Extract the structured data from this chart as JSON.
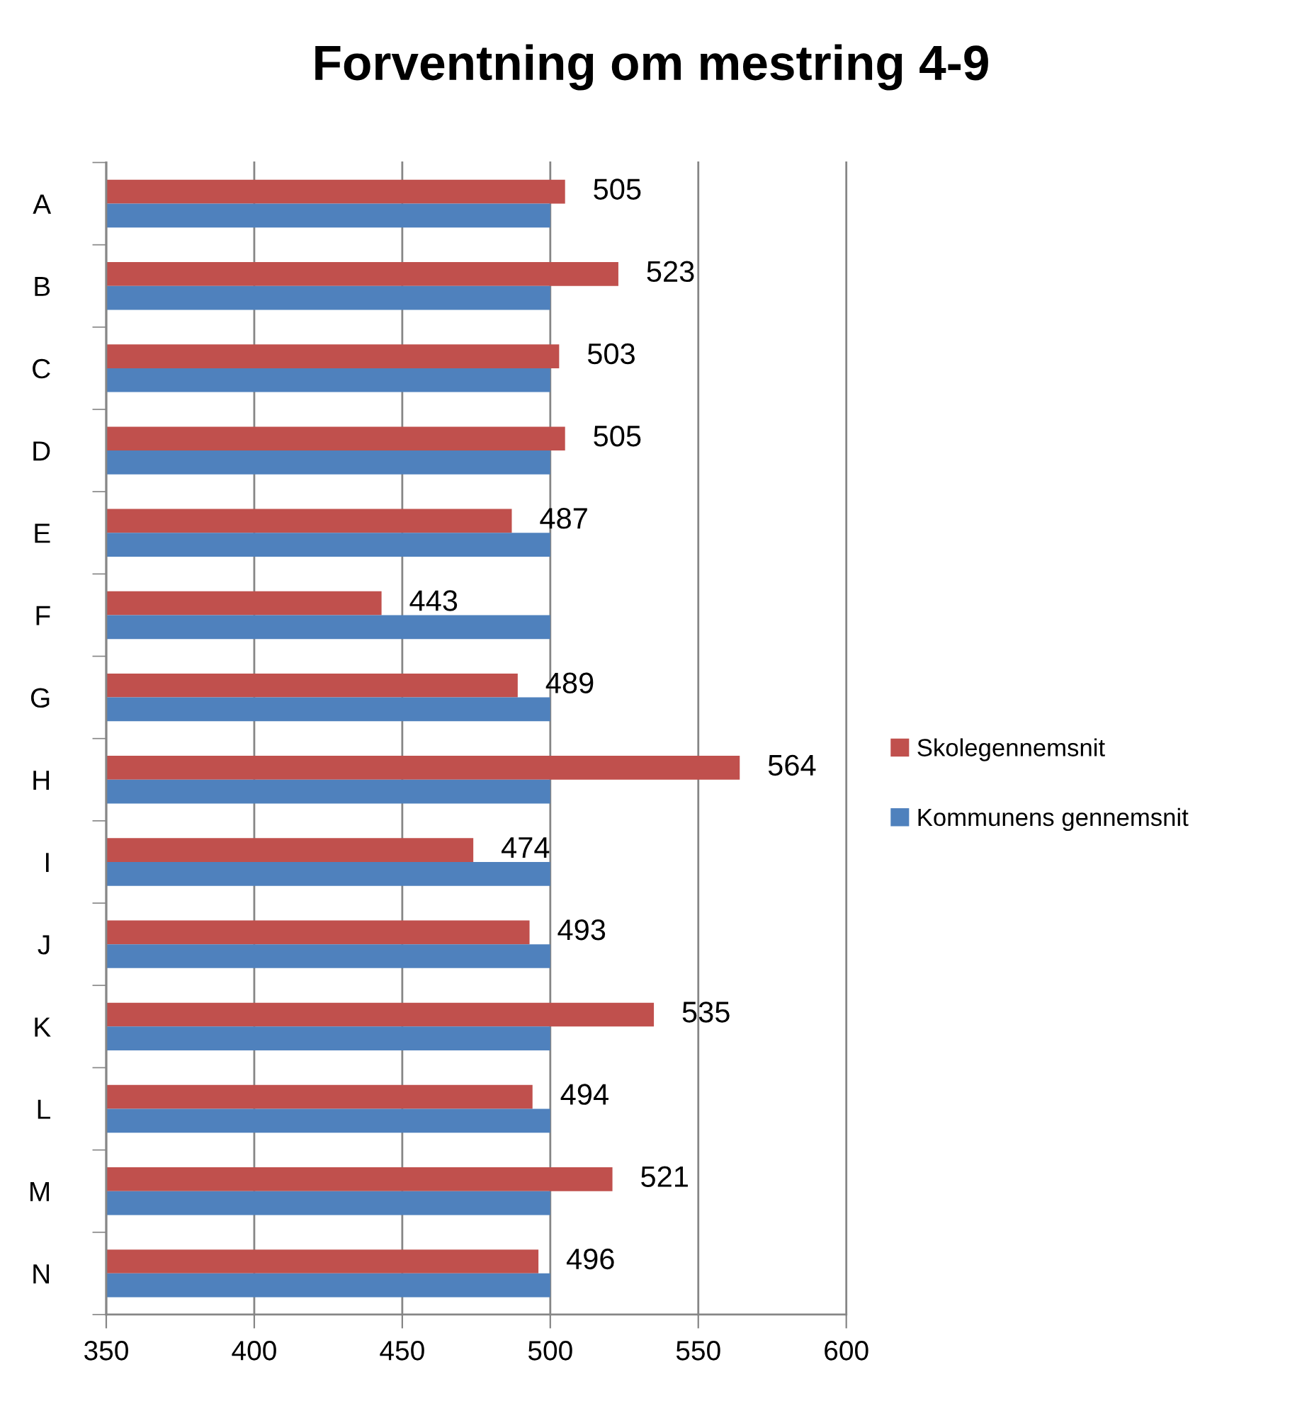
{
  "chart_data": {
    "type": "bar",
    "orientation": "horizontal",
    "title": "Forventning om mestring 4-9",
    "categories": [
      "A",
      "B",
      "C",
      "D",
      "E",
      "F",
      "G",
      "H",
      "I",
      "J",
      "K",
      "L",
      "M",
      "N"
    ],
    "series": [
      {
        "name": "Skolegennemsnit",
        "color": "#c0504d",
        "values": [
          505,
          523,
          503,
          505,
          487,
          443,
          489,
          564,
          474,
          493,
          535,
          494,
          521,
          496
        ],
        "value_labels": [
          "505",
          "523",
          "503",
          "505",
          "487",
          "443",
          "489",
          "564",
          "474",
          "493",
          "535",
          "494",
          "521",
          "496"
        ]
      },
      {
        "name": "Kommunens gennemsnit",
        "color": "#4f81bd",
        "values": [
          500,
          500,
          500,
          500,
          500,
          500,
          500,
          500,
          500,
          500,
          500,
          500,
          500,
          500
        ]
      }
    ],
    "xlim": [
      350,
      600
    ],
    "xticks": [
      350,
      400,
      450,
      500,
      550,
      600
    ],
    "grid": "x",
    "legend": "right"
  }
}
